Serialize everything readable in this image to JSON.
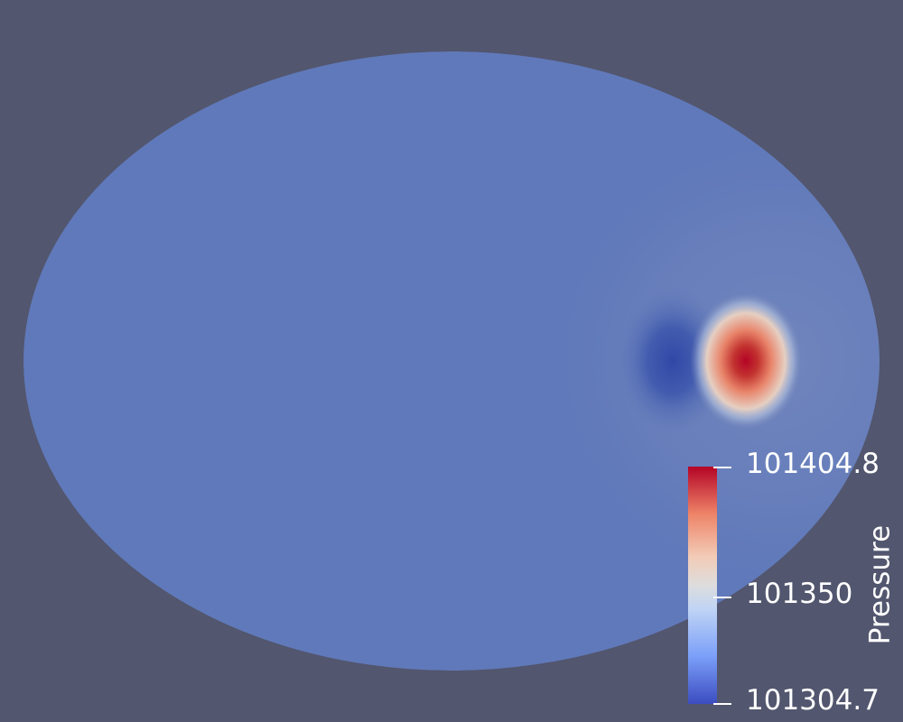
{
  "scene": {
    "shape": "ellipse",
    "colors": {
      "background": "#52566e",
      "field_base": "#6079ba",
      "low_extreme": "#3d55a8",
      "high_extreme": "#b40426",
      "neutral": "#dddddd"
    }
  },
  "legend": {
    "title": "Pressure",
    "max_label": "101404.8",
    "mid_label": "101350",
    "min_label": "101304.7",
    "min": 101304.7,
    "mid": 101350,
    "max": 101404.8,
    "colormap": "Cool to Warm",
    "colormap_stops": [
      "#3b4cc0",
      "#7b9ff9",
      "#c0d4f5",
      "#dddddd",
      "#f2cbb7",
      "#ee8468",
      "#b40426"
    ]
  }
}
